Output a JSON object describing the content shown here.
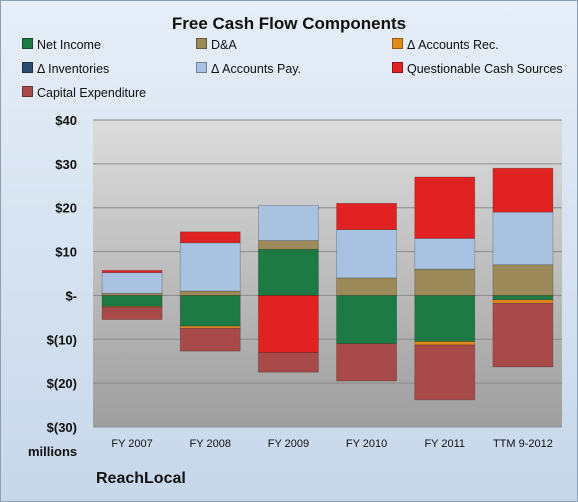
{
  "chart_data": {
    "type": "bar",
    "stacked": true,
    "title": "Free Cash Flow Components",
    "ylabel": "millions",
    "categories": [
      "FY 2007",
      "FY 2008",
      "FY 2009",
      "FY 2010",
      "FY 2011",
      "TTM 9-2012"
    ],
    "yticks": [
      "$40",
      "$30",
      "$20",
      "$10",
      "$-",
      "$(10)",
      "$(20)",
      "$(30)"
    ],
    "ylim": [
      -30,
      40
    ],
    "grid": true,
    "legend_position": "top",
    "series": [
      {
        "name": "Net Income",
        "color": "#1e7a45",
        "values": [
          -2.5,
          -7,
          10.5,
          -11,
          -10.5,
          -1
        ]
      },
      {
        "name": "D&A",
        "color": "#9c8a5a",
        "values": [
          0.5,
          1,
          2,
          4,
          6,
          7
        ]
      },
      {
        "name": "Δ Accounts Rec.",
        "color": "#e08a1e",
        "values": [
          -0.2,
          -0.5,
          0,
          0,
          -0.8,
          -0.8
        ]
      },
      {
        "name": "Δ Inventories",
        "color": "#2b4a6e",
        "values": [
          0,
          0,
          0,
          0,
          0,
          0
        ]
      },
      {
        "name": "Δ Accounts Pay.",
        "color": "#a9c2e2",
        "values": [
          4.7,
          11,
          8,
          11,
          7,
          12
        ]
      },
      {
        "name": "Questionable Cash Sources",
        "color": "#e02222",
        "values": [
          0.5,
          2.5,
          -13,
          6,
          14,
          10
        ]
      },
      {
        "name": "Capital Expenditure",
        "color": "#a84a4a",
        "values": [
          -2.8,
          -5.2,
          -4.5,
          -8.5,
          -12.5,
          -14.5
        ]
      }
    ]
  },
  "footer": {
    "brand": "ReachLocal"
  }
}
